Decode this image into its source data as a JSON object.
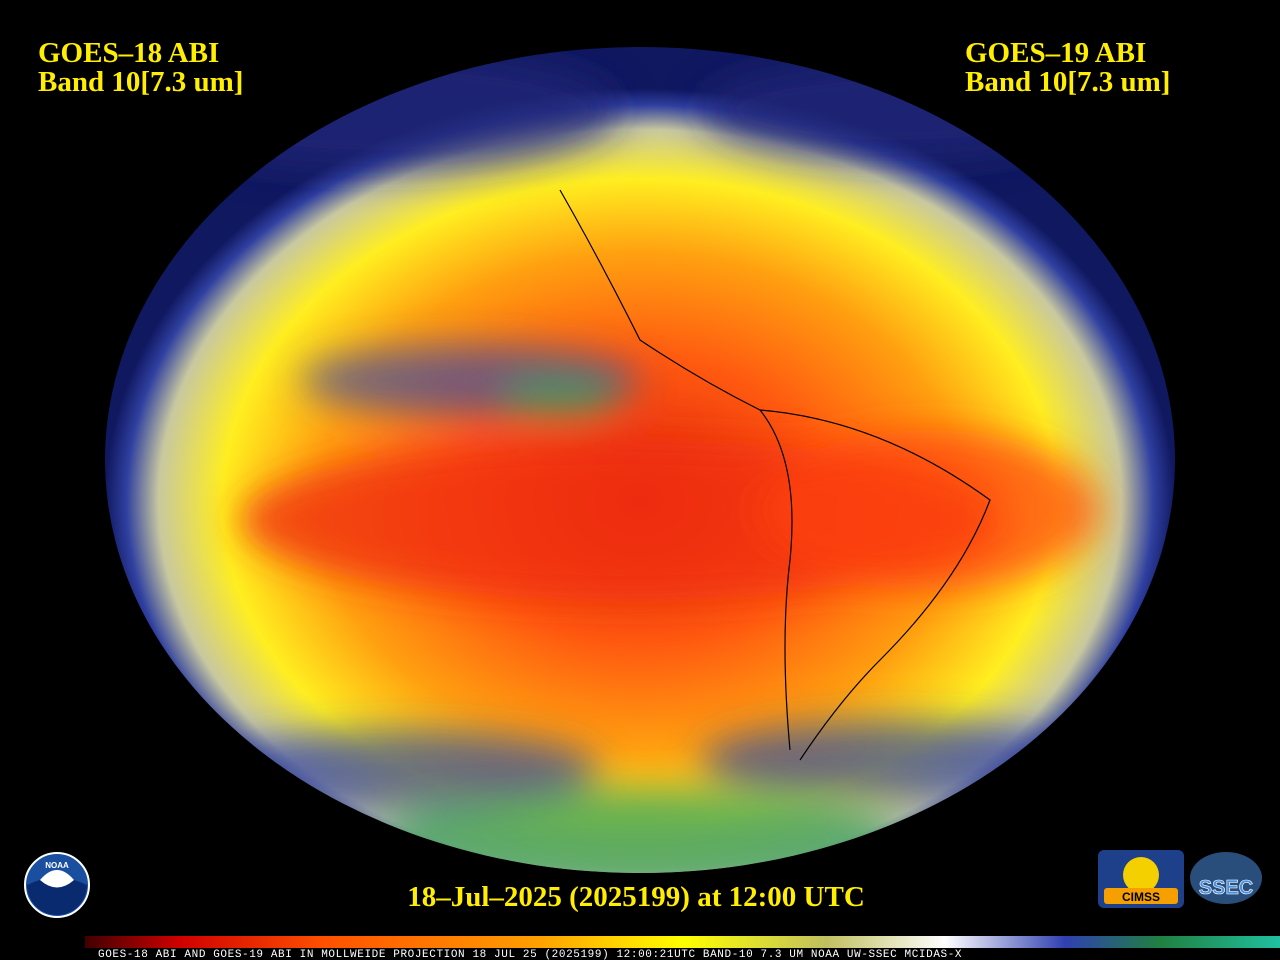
{
  "header": {
    "left": {
      "line1": "GOES–18 ABI",
      "line2": "Band 10[7.3 um]"
    },
    "right": {
      "line1": "GOES–19 ABI",
      "line2": "Band 10[7.3 um]"
    }
  },
  "timestamp": "18–Jul–2025 (2025199) at 12:00 UTC",
  "footer": "GOES-18 ABI AND GOES-19 ABI IN MOLLWEIDE PROJECTION 18 JUL 25 (2025199) 12:00:21UTC BAND-10 7.3 UM NOAA UW-SSEC MCIDAS-X",
  "logos": {
    "noaa": "NOAA",
    "cimss": "CIMSS",
    "ssec": "SSEC"
  }
}
